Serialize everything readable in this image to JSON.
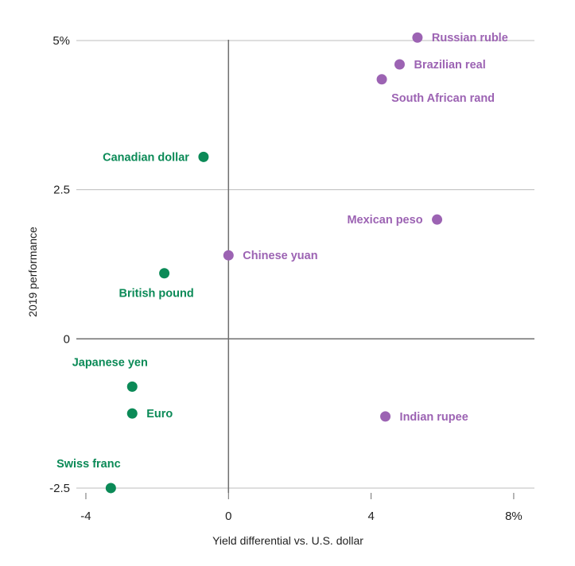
{
  "chart_data": {
    "type": "scatter",
    "title": "",
    "xlabel": "Yield differential vs. U.S. dollar",
    "ylabel": "2019 performance",
    "xlim": [
      -4.4,
      8.6
    ],
    "ylim": [
      -2.6,
      5.1
    ],
    "x_ticks": [
      {
        "value": -4,
        "label": "-4"
      },
      {
        "value": 0,
        "label": "0"
      },
      {
        "value": 4,
        "label": "4"
      },
      {
        "value": 8,
        "label": "8%"
      }
    ],
    "y_ticks": [
      {
        "value": 5,
        "label": "5%"
      },
      {
        "value": 2.5,
        "label": "2.5"
      },
      {
        "value": 0,
        "label": "0"
      },
      {
        "value": -2.5,
        "label": "-2.5"
      }
    ],
    "grid": "horizontal",
    "colors": {
      "group_a": "#0b8a57",
      "group_b": "#9c63b3"
    },
    "points": [
      {
        "label": "Russian ruble",
        "x": 5.3,
        "y": 5.05,
        "group": "group_b",
        "label_side": "right"
      },
      {
        "label": "Brazilian real",
        "x": 4.8,
        "y": 4.6,
        "group": "group_b",
        "label_side": "right"
      },
      {
        "label": "South African rand",
        "x": 4.3,
        "y": 4.35,
        "group": "group_b",
        "label_side": "below-right"
      },
      {
        "label": "Canadian dollar",
        "x": -0.7,
        "y": 3.05,
        "group": "group_a",
        "label_side": "left"
      },
      {
        "label": "Mexican peso",
        "x": 5.85,
        "y": 2.0,
        "group": "group_b",
        "label_side": "left"
      },
      {
        "label": "Chinese yuan",
        "x": 0.0,
        "y": 1.4,
        "group": "group_b",
        "label_side": "right"
      },
      {
        "label": "British pound",
        "x": -1.8,
        "y": 1.1,
        "group": "group_a",
        "label_side": "below"
      },
      {
        "label": "Japanese yen",
        "x": -2.7,
        "y": -0.8,
        "group": "group_a",
        "label_side": "above"
      },
      {
        "label": "Euro",
        "x": -2.7,
        "y": -1.25,
        "group": "group_a",
        "label_side": "right"
      },
      {
        "label": "Indian rupee",
        "x": 4.4,
        "y": -1.3,
        "group": "group_b",
        "label_side": "right"
      },
      {
        "label": "Swiss franc",
        "x": -3.3,
        "y": -2.5,
        "group": "group_a",
        "label_side": "above"
      }
    ]
  }
}
